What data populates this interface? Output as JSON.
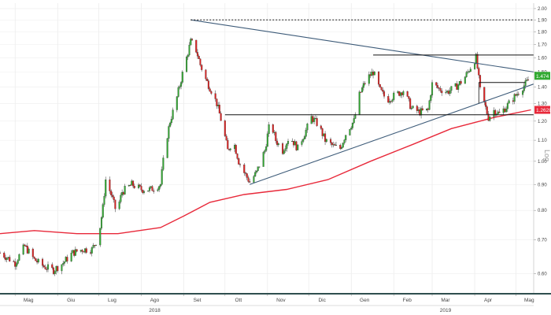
{
  "toolbar": {
    "buttons": [
      {
        "icon": "select-arrow-icon",
        "glyph": "↖"
      },
      {
        "icon": "draw-pen-icon",
        "glyph": "✎"
      },
      {
        "icon": "magnify-icon",
        "glyph": "⌕"
      }
    ],
    "count": "0"
  },
  "chart_data": {
    "type": "candlestick",
    "scale": "log",
    "y_axis_label": "Log",
    "ylim": [
      0.55,
      2.05
    ],
    "yticks": [
      "0.60",
      "0.70",
      "0.80",
      "0.90",
      "1.00",
      "1.10",
      "1.20",
      "1.30",
      "1.40",
      "1.50",
      "1.60",
      "1.70",
      "1.80",
      "1.90",
      "2.00"
    ],
    "x_months": [
      {
        "label": "Mag",
        "date": "2018-05-01"
      },
      {
        "label": "Giu",
        "date": "2018-06-01"
      },
      {
        "label": "Lug",
        "date": "2018-07-01"
      },
      {
        "label": "Ago",
        "date": "2018-08-01"
      },
      {
        "label": "Set",
        "date": "2018-09-01"
      },
      {
        "label": "Ott",
        "date": "2018-10-01"
      },
      {
        "label": "Nov",
        "date": "2018-11-01"
      },
      {
        "label": "Dic",
        "date": "2018-12-01"
      },
      {
        "label": "Gen",
        "date": "2019-01-01"
      },
      {
        "label": "Feb",
        "date": "2019-02-01"
      },
      {
        "label": "Mar",
        "date": "2019-03-01"
      },
      {
        "label": "Apr",
        "date": "2019-04-01"
      },
      {
        "label": "Mag",
        "date": "2019-05-01"
      }
    ],
    "x_years": [
      {
        "label": "2018",
        "date": "2018-08-01"
      },
      {
        "label": "2019",
        "date": "2019-03-01"
      }
    ],
    "up_color": "#33aa33",
    "down_color": "#dd2222",
    "price_path": [
      [
        "2018-04-20",
        0.66
      ],
      [
        "2018-05-01",
        0.63
      ],
      [
        "2018-05-08",
        0.68
      ],
      [
        "2018-05-15",
        0.64
      ],
      [
        "2018-05-22",
        0.62
      ],
      [
        "2018-05-29",
        0.61
      ],
      [
        "2018-06-05",
        0.63
      ],
      [
        "2018-06-12",
        0.66
      ],
      [
        "2018-06-19",
        0.67
      ],
      [
        "2018-06-26",
        0.67
      ],
      [
        "2018-07-01",
        0.71
      ],
      [
        "2018-07-04",
        0.81
      ],
      [
        "2018-07-06",
        0.92
      ],
      [
        "2018-07-10",
        0.86
      ],
      [
        "2018-07-14",
        0.79
      ],
      [
        "2018-07-18",
        0.87
      ],
      [
        "2018-07-25",
        0.9
      ],
      [
        "2018-08-01",
        0.88
      ],
      [
        "2018-08-08",
        0.88
      ],
      [
        "2018-08-15",
        0.9
      ],
      [
        "2018-08-18",
        1.05
      ],
      [
        "2018-08-22",
        1.2
      ],
      [
        "2018-08-26",
        1.3
      ],
      [
        "2018-08-30",
        1.45
      ],
      [
        "2018-09-03",
        1.6
      ],
      [
        "2018-09-06",
        1.72
      ],
      [
        "2018-09-09",
        1.69
      ],
      [
        "2018-09-13",
        1.55
      ],
      [
        "2018-09-17",
        1.45
      ],
      [
        "2018-09-21",
        1.38
      ],
      [
        "2018-09-25",
        1.3
      ],
      [
        "2018-09-30",
        1.15
      ],
      [
        "2018-10-03",
        1.05
      ],
      [
        "2018-10-07",
        1.1
      ],
      [
        "2018-10-11",
        1.0
      ],
      [
        "2018-10-15",
        0.95
      ],
      [
        "2018-10-19",
        0.91
      ],
      [
        "2018-10-24",
        0.95
      ],
      [
        "2018-10-30",
        1.05
      ],
      [
        "2018-11-03",
        1.2
      ],
      [
        "2018-11-07",
        1.1
      ],
      [
        "2018-11-12",
        1.05
      ],
      [
        "2018-11-17",
        1.12
      ],
      [
        "2018-11-23",
        1.06
      ],
      [
        "2018-11-29",
        1.15
      ],
      [
        "2018-12-03",
        1.22
      ],
      [
        "2018-12-08",
        1.18
      ],
      [
        "2018-12-13",
        1.1
      ],
      [
        "2018-12-19",
        1.07
      ],
      [
        "2018-12-24",
        1.06
      ],
      [
        "2018-12-29",
        1.15
      ],
      [
        "2019-01-03",
        1.2
      ],
      [
        "2019-01-07",
        1.35
      ],
      [
        "2019-01-12",
        1.45
      ],
      [
        "2019-01-17",
        1.5
      ],
      [
        "2019-01-22",
        1.38
      ],
      [
        "2019-01-27",
        1.32
      ],
      [
        "2019-02-02",
        1.35
      ],
      [
        "2019-02-08",
        1.38
      ],
      [
        "2019-02-14",
        1.27
      ],
      [
        "2019-02-20",
        1.25
      ],
      [
        "2019-02-26",
        1.26
      ],
      [
        "2019-03-01",
        1.42
      ],
      [
        "2019-03-06",
        1.39
      ],
      [
        "2019-03-12",
        1.37
      ],
      [
        "2019-03-18",
        1.4
      ],
      [
        "2019-03-24",
        1.45
      ],
      [
        "2019-03-30",
        1.55
      ],
      [
        "2019-04-02",
        1.6
      ],
      [
        "2019-04-05",
        1.38
      ],
      [
        "2019-04-08",
        1.3
      ],
      [
        "2019-04-11",
        1.22
      ],
      [
        "2019-04-15",
        1.26
      ],
      [
        "2019-04-19",
        1.24
      ],
      [
        "2019-04-24",
        1.28
      ],
      [
        "2019-04-29",
        1.33
      ],
      [
        "2019-05-04",
        1.38
      ],
      [
        "2019-05-08",
        1.42
      ],
      [
        "2019-05-12",
        1.47
      ]
    ],
    "moving_average": {
      "color": "#e8293a",
      "points": [
        [
          "2018-04-20",
          0.72
        ],
        [
          "2018-05-15",
          0.73
        ],
        [
          "2018-06-15",
          0.72
        ],
        [
          "2018-07-15",
          0.72
        ],
        [
          "2018-08-15",
          0.74
        ],
        [
          "2018-09-01",
          0.78
        ],
        [
          "2018-09-20",
          0.83
        ],
        [
          "2018-10-15",
          0.86
        ],
        [
          "2018-11-15",
          0.88
        ],
        [
          "2018-12-15",
          0.92
        ],
        [
          "2019-01-15",
          1.0
        ],
        [
          "2019-02-15",
          1.08
        ],
        [
          "2019-03-15",
          1.16
        ],
        [
          "2019-04-15",
          1.22
        ],
        [
          "2019-05-12",
          1.2628
        ]
      ]
    },
    "trendlines": [
      {
        "name": "descending-resistance",
        "from": [
          "2018-09-06",
          1.9
        ],
        "to": [
          "2019-05-14",
          1.5
        ],
        "color": "#3c5a78"
      },
      {
        "name": "ascending-support",
        "from": [
          "2018-10-19",
          0.9
        ],
        "to": [
          "2019-05-14",
          1.42
        ],
        "color": "#3c5a78"
      }
    ],
    "horizontal_levels": [
      {
        "name": "dotted-top-level",
        "value": 1.9,
        "from": "2018-09-06",
        "to": "2019-05-14",
        "style": "dotted"
      },
      {
        "name": "upper-box-level",
        "value": 1.62,
        "from": "2019-01-17",
        "to": "2019-05-14",
        "style": "solid"
      },
      {
        "name": "mid-level",
        "value": 1.235,
        "from": "2018-10-01",
        "to": "2019-05-14",
        "style": "solid"
      },
      {
        "name": "apr-box-level",
        "value": 1.43,
        "from": "2019-04-04",
        "to": "2019-05-08",
        "style": "solid"
      }
    ],
    "price_labels": [
      {
        "text": "1.474",
        "value": 1.474,
        "bg": "#33aa33"
      },
      {
        "text": "1.2628",
        "value": 1.2628,
        "bg": "#e8293a"
      }
    ]
  }
}
